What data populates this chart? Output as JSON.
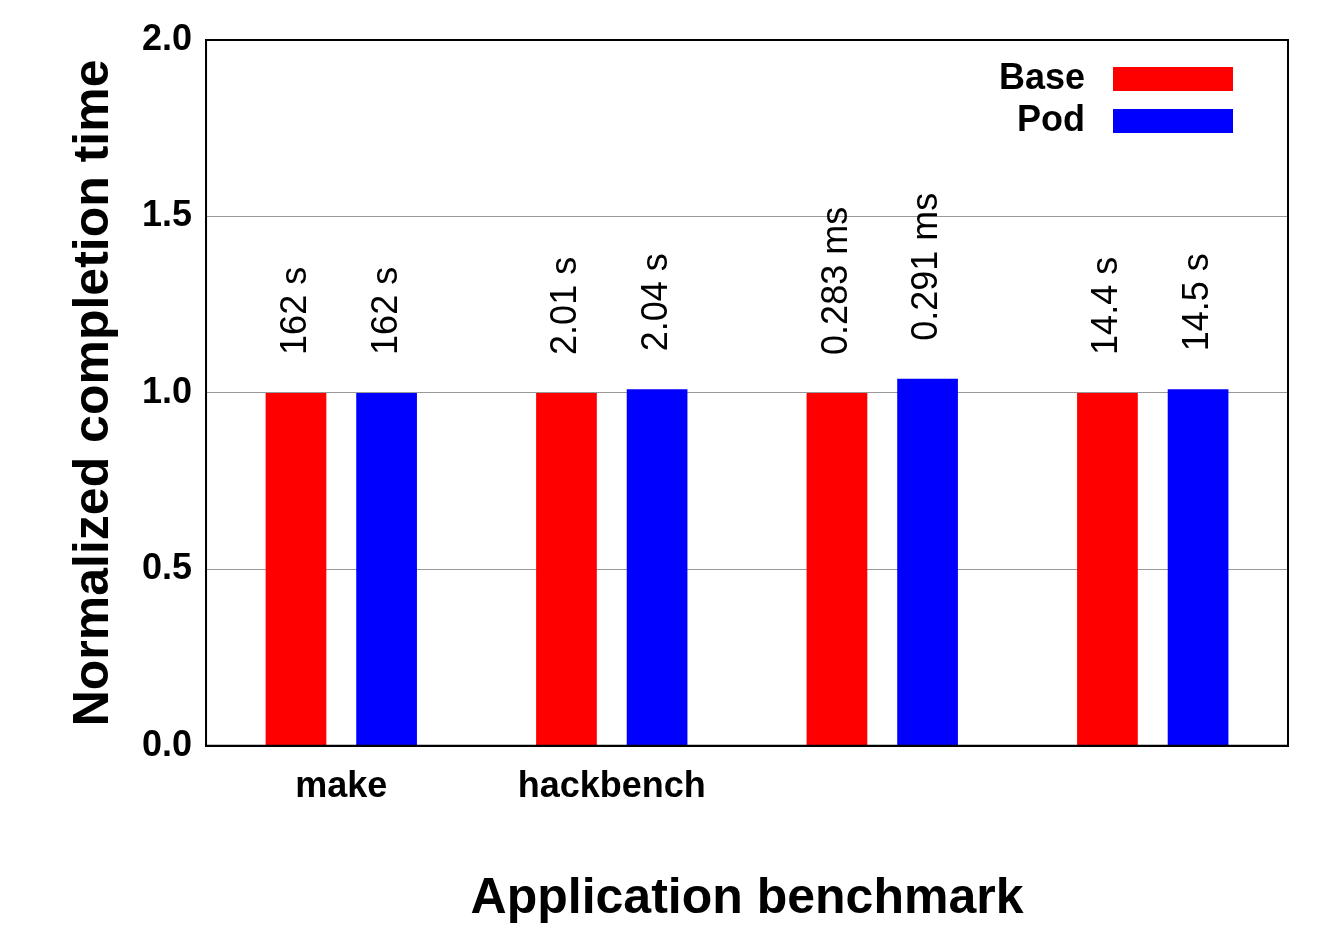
{
  "chart_data": {
    "type": "bar",
    "xlabel": "Application benchmark",
    "ylabel": "Normalized completion time",
    "categories": [
      "make",
      "hackbench",
      null,
      null
    ],
    "series": [
      {
        "name": "Base",
        "color": "#ff0000",
        "values": [
          1.0,
          1.0,
          1.0,
          1.0
        ]
      },
      {
        "name": "Pod",
        "color": "#0000ff",
        "values": [
          1.0,
          1.01,
          1.04,
          1.01
        ]
      }
    ],
    "annotations": [
      "162 s",
      "162 s",
      "2.01 s",
      "2.04 s",
      "0.283 ms",
      "0.291 ms",
      "14.4 s",
      "14.5 s"
    ],
    "ylim": [
      0,
      2
    ],
    "yticks": [
      {
        "value": 0,
        "label": "0.0"
      },
      {
        "value": 0.5,
        "label": "0.5"
      },
      {
        "value": 1,
        "label": "1.0"
      },
      {
        "value": 1.5,
        "label": "1.5"
      },
      {
        "value": 2,
        "label": "2.0"
      }
    ],
    "grid": "y",
    "legend": "top right"
  }
}
